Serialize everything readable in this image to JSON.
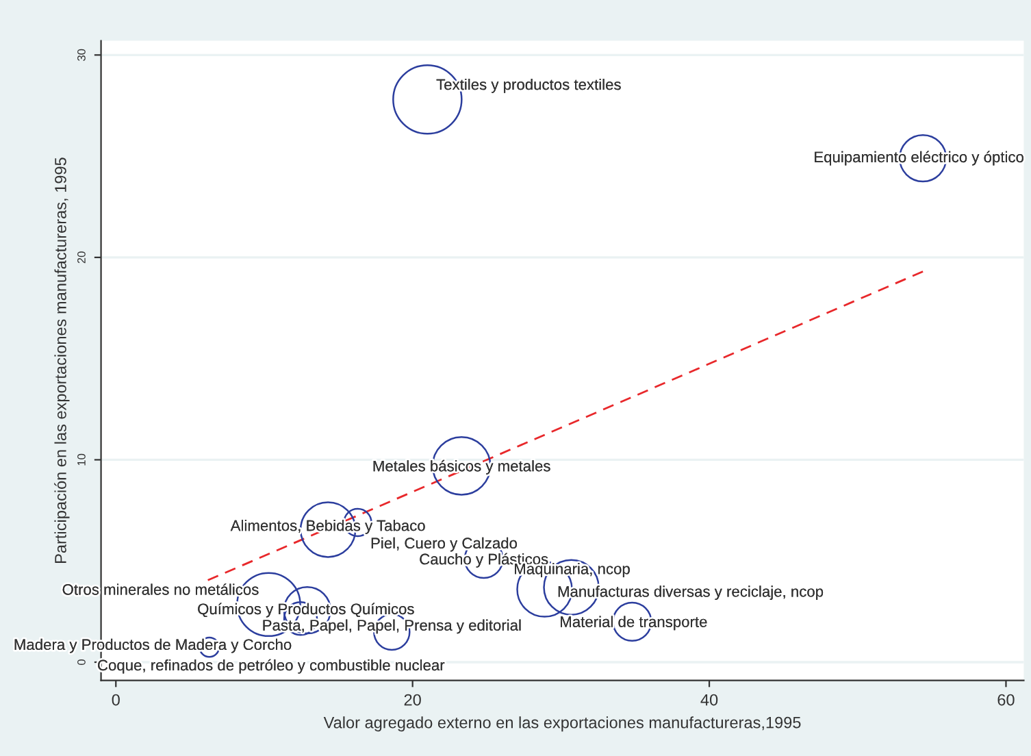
{
  "chart_data": {
    "type": "bubble",
    "xlabel": "Valor agregado externo en las exportaciones manufactureras,1995",
    "ylabel": "Participación en las exportaciones manufactureras, 1995",
    "xlim": [
      -1.0,
      61.2
    ],
    "ylim": [
      -0.9,
      30.7
    ],
    "xticks": [
      0,
      20,
      40,
      60
    ],
    "yticks": [
      0,
      10,
      20,
      30
    ],
    "grid": "y",
    "series": [
      {
        "marker": "circle",
        "color": "#2c3e9e",
        "x": [
          21.0,
          54.4,
          23.3,
          14.3,
          16.3,
          24.8,
          28.9,
          30.7,
          34.8,
          10.3,
          12.9,
          12.45,
          18.6,
          6.3
        ],
        "values": [
          27.8,
          24.9,
          9.7,
          6.55,
          6.9,
          5.1,
          3.6,
          3.7,
          2.0,
          2.85,
          2.57,
          2.16,
          1.49,
          0.74
        ],
        "sizes": [
          1,
          0.46,
          0.71,
          0.64,
          0.16,
          0.31,
          0.64,
          0.64,
          0.31,
          0.85,
          0.46,
          0.23,
          0.27,
          0.08
        ]
      },
      {
        "type": "line",
        "color": "#e8282b",
        "line_style": "dashed",
        "x": [
          6.2,
          54.4
        ],
        "values": [
          4.05,
          19.3
        ]
      }
    ],
    "annotations": [
      {
        "text": "Textiles y productos textiles",
        "x": 21.0,
        "y": 27.8
      },
      {
        "text": "Equipamiento eléctrico y óptico",
        "x": 54.4,
        "y": 24.9
      },
      {
        "text": "Metales básicos y metales",
        "x": 23.3,
        "y": 9.7
      },
      {
        "text": "Alimentos, Bebidas y Tabaco",
        "x": 14.3,
        "y": 6.55
      },
      {
        "text": "Piel, Cuero y Calzado",
        "x": 16.3,
        "y": 6.9
      },
      {
        "text": "Caucho y Plásticos",
        "x": 24.8,
        "y": 5.1
      },
      {
        "text": "Maquinaria, ncop",
        "x": 28.9,
        "y": 3.6
      },
      {
        "text": "Manufacturas diversas y reciclaje, ncop",
        "x": 30.7,
        "y": 3.7
      },
      {
        "text": "Material de transporte",
        "x": 34.8,
        "y": 2.0
      },
      {
        "text": "Otros minerales no metálicos",
        "x": 10.3,
        "y": 2.85
      },
      {
        "text": "Químicos y Productos Químicos",
        "x": 12.9,
        "y": 2.57
      },
      {
        "text": "Pasta, Papel, Papel, Prensa y editorial",
        "x": 18.6,
        "y": 1.49
      },
      {
        "text": "Madera y Productos de Madera y Corcho",
        "x": 12.45,
        "y": 2.16
      },
      {
        "text": "Coque, refinados de petróleo y combustible nuclear",
        "x": 6.3,
        "y": 0.74
      }
    ]
  }
}
